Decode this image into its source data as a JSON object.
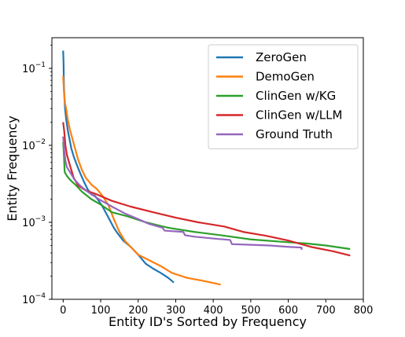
{
  "chart_data": {
    "type": "line",
    "title": "",
    "xlabel": "Entity ID's Sorted by Frequency",
    "ylabel": "Entity Frequency",
    "xlim": [
      -30,
      800
    ],
    "ylim": [
      0.0001,
      0.25
    ],
    "yscale": "log",
    "grid": false,
    "legend_position": "top-right",
    "x_ticks": [
      0,
      100,
      200,
      300,
      400,
      500,
      600,
      700,
      800
    ],
    "x_tick_labels": [
      "0",
      "100",
      "200",
      "300",
      "400",
      "500",
      "600",
      "700",
      "800"
    ],
    "y_ticks": [
      0.0001,
      0.001,
      0.01,
      0.1
    ],
    "y_tick_labels": [
      {
        "base": "10",
        "exp": "−4"
      },
      {
        "base": "10",
        "exp": "−3"
      },
      {
        "base": "10",
        "exp": "−2"
      },
      {
        "base": "10",
        "exp": "−1"
      }
    ],
    "series": [
      {
        "name": "ZeroGen",
        "color": "#1f77b4",
        "points": [
          [
            0,
            0.17
          ],
          [
            1,
            0.12
          ],
          [
            2,
            0.06
          ],
          [
            3,
            0.045
          ],
          [
            5,
            0.03
          ],
          [
            8,
            0.022
          ],
          [
            12,
            0.016
          ],
          [
            17,
            0.012
          ],
          [
            22,
            0.009
          ],
          [
            28,
            0.0072
          ],
          [
            35,
            0.0058
          ],
          [
            45,
            0.0044
          ],
          [
            55,
            0.0034
          ],
          [
            65,
            0.0027
          ],
          [
            75,
            0.0023
          ],
          [
            85,
            0.0022
          ],
          [
            95,
            0.0019
          ],
          [
            105,
            0.0016
          ],
          [
            115,
            0.0013
          ],
          [
            125,
            0.00105
          ],
          [
            135,
            0.00085
          ],
          [
            145,
            0.00072
          ],
          [
            160,
            0.00058
          ],
          [
            180,
            0.00048
          ],
          [
            200,
            0.00038
          ],
          [
            220,
            0.00029
          ],
          [
            240,
            0.00025
          ],
          [
            260,
            0.00022
          ],
          [
            280,
            0.00019
          ],
          [
            295,
            0.000165
          ]
        ]
      },
      {
        "name": "DemoGen",
        "color": "#ff7f0e",
        "points": [
          [
            0,
            0.08
          ],
          [
            2,
            0.05
          ],
          [
            5,
            0.035
          ],
          [
            8,
            0.03
          ],
          [
            12,
            0.022
          ],
          [
            18,
            0.016
          ],
          [
            25,
            0.012
          ],
          [
            32,
            0.009
          ],
          [
            40,
            0.0065
          ],
          [
            50,
            0.0048
          ],
          [
            60,
            0.0038
          ],
          [
            75,
            0.0031
          ],
          [
            90,
            0.0027
          ],
          [
            105,
            0.0022
          ],
          [
            120,
            0.0017
          ],
          [
            135,
            0.0011
          ],
          [
            150,
            0.00075
          ],
          [
            165,
            0.00057
          ],
          [
            180,
            0.00048
          ],
          [
            200,
            0.00038
          ],
          [
            230,
            0.00032
          ],
          [
            260,
            0.00027
          ],
          [
            290,
            0.00022
          ],
          [
            330,
            0.00019
          ],
          [
            370,
            0.000175
          ],
          [
            420,
            0.000155
          ]
        ]
      },
      {
        "name": "ClinGen w/KG",
        "color": "#2ca02c",
        "points": [
          [
            0,
            0.011
          ],
          [
            2,
            0.0075
          ],
          [
            4,
            0.0045
          ],
          [
            10,
            0.004
          ],
          [
            20,
            0.0035
          ],
          [
            35,
            0.003
          ],
          [
            50,
            0.0025
          ],
          [
            75,
            0.002
          ],
          [
            100,
            0.0017
          ],
          [
            130,
            0.00135
          ],
          [
            170,
            0.0012
          ],
          [
            220,
            0.001
          ],
          [
            280,
            0.00085
          ],
          [
            350,
            0.00075
          ],
          [
            420,
            0.00068
          ],
          [
            500,
            0.0006
          ],
          [
            580,
            0.00056
          ],
          [
            650,
            0.00053
          ],
          [
            700,
            0.0005
          ],
          [
            765,
            0.00045
          ]
        ]
      },
      {
        "name": "ClinGen w/LLM",
        "color": "#d62728",
        "points": [
          [
            0,
            0.02
          ],
          [
            3,
            0.015
          ],
          [
            6,
            0.01
          ],
          [
            10,
            0.0075
          ],
          [
            18,
            0.0055
          ],
          [
            28,
            0.0038
          ],
          [
            40,
            0.003
          ],
          [
            60,
            0.0026
          ],
          [
            90,
            0.0023
          ],
          [
            130,
            0.0019
          ],
          [
            180,
            0.0016
          ],
          [
            240,
            0.00135
          ],
          [
            300,
            0.00115
          ],
          [
            360,
            0.001
          ],
          [
            430,
            0.00088
          ],
          [
            480,
            0.00075
          ],
          [
            540,
            0.00067
          ],
          [
            600,
            0.00058
          ],
          [
            660,
            0.00048
          ],
          [
            720,
            0.00042
          ],
          [
            765,
            0.00037
          ]
        ]
      },
      {
        "name": "Ground Truth",
        "color": "#9467bd",
        "points": [
          [
            0,
            0.013
          ],
          [
            3,
            0.0085
          ],
          [
            6,
            0.0063
          ],
          [
            10,
            0.0052
          ],
          [
            18,
            0.0045
          ],
          [
            30,
            0.0036
          ],
          [
            45,
            0.003
          ],
          [
            65,
            0.0025
          ],
          [
            95,
            0.002
          ],
          [
            130,
            0.0016
          ],
          [
            165,
            0.0013
          ],
          [
            200,
            0.0011
          ],
          [
            230,
            0.00095
          ],
          [
            265,
            0.00085
          ],
          [
            270,
            0.00078
          ],
          [
            320,
            0.00075
          ],
          [
            325,
            0.00068
          ],
          [
            350,
            0.00065
          ],
          [
            380,
            0.00063
          ],
          [
            410,
            0.00061
          ],
          [
            445,
            0.00059
          ],
          [
            450,
            0.00052
          ],
          [
            500,
            0.00051
          ],
          [
            550,
            0.0005
          ],
          [
            600,
            0.00048
          ],
          [
            635,
            0.00047
          ],
          [
            636,
            0.00044
          ]
        ]
      }
    ]
  }
}
